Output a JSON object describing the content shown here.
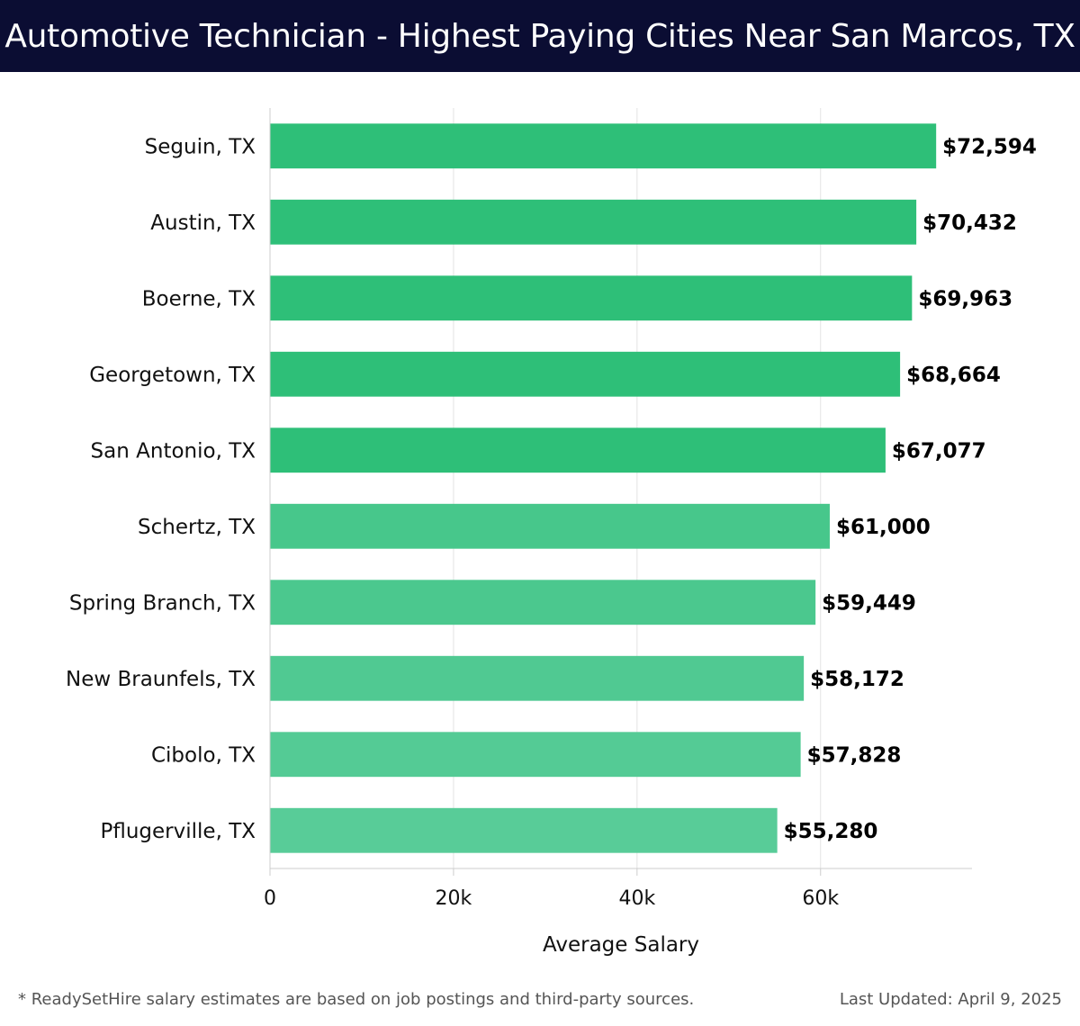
{
  "header": {
    "title": "Automotive Technician - Highest Paying Cities Near San Marcos, TX"
  },
  "chart_data": {
    "type": "bar",
    "orientation": "horizontal",
    "categories": [
      "Seguin, TX",
      "Austin, TX",
      "Boerne, TX",
      "Georgetown, TX",
      "San Antonio, TX",
      "Schertz, TX",
      "Spring Branch, TX",
      "New Braunfels, TX",
      "Cibolo, TX",
      "Pflugerville, TX"
    ],
    "values": [
      72594,
      70432,
      69963,
      68664,
      67077,
      61000,
      59449,
      58172,
      57828,
      55280
    ],
    "value_labels": [
      "$72,594",
      "$70,432",
      "$69,963",
      "$68,664",
      "$67,077",
      "$61,000",
      "$59,449",
      "$58,172",
      "$57,828",
      "$55,280"
    ],
    "xlabel": "Average Salary",
    "ylabel": "",
    "xlim": [
      0,
      76500
    ],
    "ticks": [
      0,
      20000,
      40000,
      60000
    ],
    "tick_labels": [
      "0",
      "20k",
      "40k",
      "60k"
    ],
    "grid": true,
    "colors": {
      "top": "#2ebf78",
      "bottom": "#58cc98",
      "grid": "#e3e3e3",
      "axis": "#cccccc"
    }
  },
  "footer": {
    "note": "* ReadySetHire salary estimates are based on job postings and third-party sources.",
    "updated": "Last Updated: April 9, 2025"
  }
}
